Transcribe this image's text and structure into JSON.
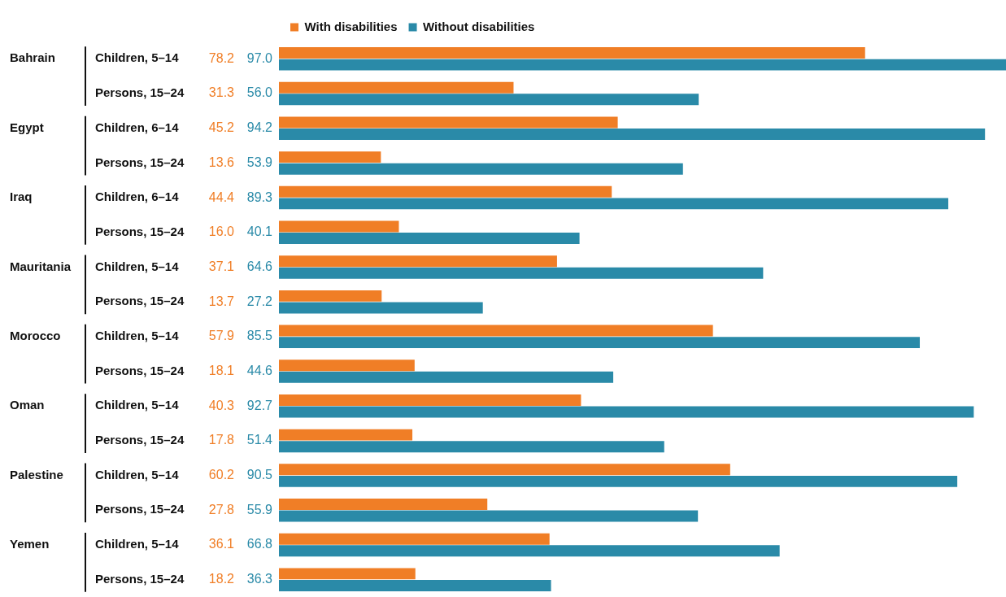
{
  "chart_data": {
    "type": "bar",
    "orientation": "horizontal",
    "legend": "top left",
    "categories": [
      "Children, 5–14",
      "Persons, 15–24",
      "Children, 6–14",
      "Persons, 15–24",
      "Children, 6–14",
      "Persons, 15–24",
      "Children, 5–14",
      "Persons, 15–24",
      "Children, 5–14",
      "Persons, 15–24",
      "Children, 5–14",
      "Persons, 15–24",
      "Children, 5–14",
      "Persons, 15–24",
      "Children, 5–14",
      "Persons, 15–24"
    ],
    "annotations": [
      "Bahrain",
      "Egypt",
      "Iraq",
      "Mauritania",
      "Morocco",
      "Oman",
      "Palestine",
      "Yemen"
    ],
    "series": [
      {
        "name": "With disabilities",
        "color": "#f07e26",
        "values": [
          78.2,
          31.3,
          45.2,
          13.6,
          44.4,
          16.0,
          37.1,
          13.7,
          57.9,
          18.1,
          40.3,
          17.8,
          60.2,
          27.8,
          36.1,
          18.2
        ],
        "value_labels": [
          "78.2",
          "31.3",
          "45.2",
          "13.6",
          "44.4",
          "16.0",
          "37.1",
          "13.7",
          "57.9",
          "18.1",
          "40.3",
          "17.8",
          "60.2",
          "27.8",
          "36.1",
          "18.2"
        ]
      },
      {
        "name": "Without disabilities",
        "color": "#2a8aa8",
        "values": [
          97.0,
          56.0,
          94.2,
          53.9,
          89.3,
          40.1,
          64.6,
          27.2,
          85.5,
          44.6,
          92.7,
          51.4,
          90.5,
          55.9,
          66.8,
          36.3
        ],
        "value_labels": [
          "97.0",
          "56.0",
          "94.2",
          "53.9",
          "89.3",
          "40.1",
          "64.6",
          "27.2",
          "85.5",
          "44.6",
          "92.7",
          "51.4",
          "90.5",
          "55.9",
          "66.8",
          "36.3"
        ]
      }
    ]
  }
}
